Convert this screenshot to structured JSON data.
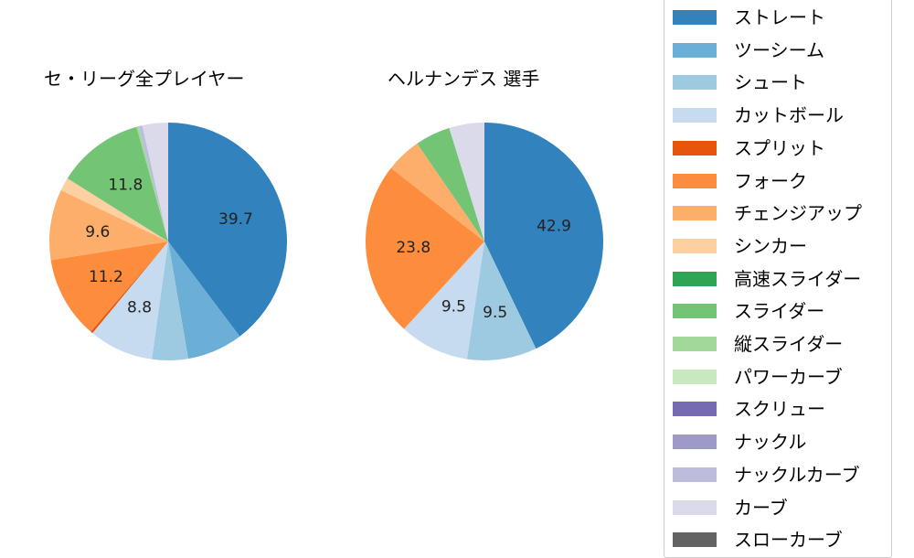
{
  "chart_data": [
    {
      "type": "pie",
      "title": "セ・リーグ全プレイヤー",
      "start_angle": 90,
      "direction": "clockwise",
      "slices": [
        {
          "label": "ストレート",
          "value": 39.7,
          "color": "#3182bd",
          "show_label": true
        },
        {
          "label": "ツーシーム",
          "value": 7.6,
          "color": "#6baed6",
          "show_label": false
        },
        {
          "label": "シュート",
          "value": 4.9,
          "color": "#9ecae1",
          "show_label": false
        },
        {
          "label": "カットボール",
          "value": 8.8,
          "color": "#c6dbef",
          "show_label": true
        },
        {
          "label": "スプリット",
          "value": 0.3,
          "color": "#e6550d",
          "show_label": false
        },
        {
          "label": "フォーク",
          "value": 11.2,
          "color": "#fd8d3c",
          "show_label": true
        },
        {
          "label": "チェンジアップ",
          "value": 9.6,
          "color": "#fdae6b",
          "show_label": true
        },
        {
          "label": "シンカー",
          "value": 1.8,
          "color": "#fdd0a2",
          "show_label": false
        },
        {
          "label": "スライダー",
          "value": 11.8,
          "color": "#74c476",
          "show_label": true
        },
        {
          "label": "縦スライダー",
          "value": 0.3,
          "color": "#a1d99b",
          "show_label": false
        },
        {
          "label": "ナックルカーブ",
          "value": 0.5,
          "color": "#bcbddc",
          "show_label": false
        },
        {
          "label": "カーブ",
          "value": 3.5,
          "color": "#dadaeb",
          "show_label": false
        }
      ]
    },
    {
      "type": "pie",
      "title": "ヘルナンデス  選手",
      "start_angle": 90,
      "direction": "clockwise",
      "slices": [
        {
          "label": "ストレート",
          "value": 42.9,
          "color": "#3182bd",
          "show_label": true
        },
        {
          "label": "シュート",
          "value": 9.5,
          "color": "#9ecae1",
          "show_label": true
        },
        {
          "label": "カットボール",
          "value": 9.5,
          "color": "#c6dbef",
          "show_label": true
        },
        {
          "label": "フォーク",
          "value": 23.8,
          "color": "#fd8d3c",
          "show_label": true
        },
        {
          "label": "チェンジアップ",
          "value": 4.8,
          "color": "#fdae6b",
          "show_label": false
        },
        {
          "label": "スライダー",
          "value": 4.8,
          "color": "#74c476",
          "show_label": false
        },
        {
          "label": "カーブ",
          "value": 4.8,
          "color": "#dadaeb",
          "show_label": false
        }
      ]
    }
  ],
  "titles": {
    "left": "セ・リーグ全プレイヤー",
    "right": "ヘルナンデス  選手"
  },
  "legend": [
    {
      "label": "ストレート",
      "color": "#3182bd"
    },
    {
      "label": "ツーシーム",
      "color": "#6baed6"
    },
    {
      "label": "シュート",
      "color": "#9ecae1"
    },
    {
      "label": "カットボール",
      "color": "#c6dbef"
    },
    {
      "label": "スプリット",
      "color": "#e6550d"
    },
    {
      "label": "フォーク",
      "color": "#fd8d3c"
    },
    {
      "label": "チェンジアップ",
      "color": "#fdae6b"
    },
    {
      "label": "シンカー",
      "color": "#fdd0a2"
    },
    {
      "label": "高速スライダー",
      "color": "#31a354"
    },
    {
      "label": "スライダー",
      "color": "#74c476"
    },
    {
      "label": "縦スライダー",
      "color": "#a1d99b"
    },
    {
      "label": "パワーカーブ",
      "color": "#c7e9c0"
    },
    {
      "label": "スクリュー",
      "color": "#756bb1"
    },
    {
      "label": "ナックル",
      "color": "#9e9ac8"
    },
    {
      "label": "ナックルカーブ",
      "color": "#bcbddc"
    },
    {
      "label": "カーブ",
      "color": "#dadaeb"
    },
    {
      "label": "スローカーブ",
      "color": "#636363"
    }
  ]
}
